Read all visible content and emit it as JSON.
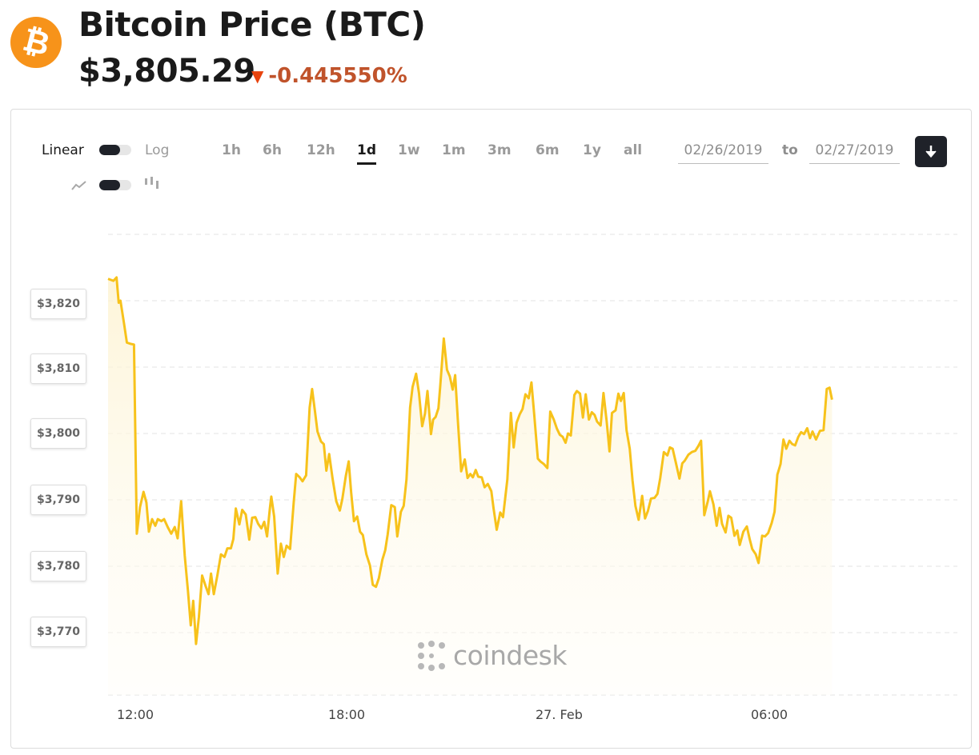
{
  "header": {
    "logo_glyph": "₿",
    "title": "Bitcoin Price (BTC)",
    "price": "$3,805.29",
    "change": "-0.445550%",
    "change_color": "#c0532b",
    "down_arrow_color": "#e8430e",
    "brand_color": "#f7931a"
  },
  "controls": {
    "scale_linear": "Linear",
    "scale_log": "Log",
    "chart_type_line_icon": "line-chart-icon",
    "chart_type_candle_icon": "candlestick-icon",
    "ranges": [
      "1h",
      "6h",
      "12h",
      "1d",
      "1w",
      "1m",
      "3m",
      "6m",
      "1y",
      "all"
    ],
    "active_range": "1d",
    "date_from": "02/26/2019",
    "date_to": "02/27/2019",
    "to_label": "to",
    "download_icon": "download-arrow-icon"
  },
  "watermark": "coindesk",
  "chart_data": {
    "type": "area",
    "line_color": "#f7c21b",
    "y_ticks": [
      "$3,820",
      "$3,810",
      "$3,800",
      "$3,790",
      "$3,780",
      "$3,770"
    ],
    "x_ticks": [
      "12:00",
      "18:00",
      "27. Feb",
      "06:00"
    ],
    "ylim": [
      3760,
      3830
    ],
    "grid": true,
    "series": [
      {
        "values": [
          [
            0,
            3823.3
          ],
          [
            0.15,
            3823.0
          ],
          [
            0.24,
            3823.5
          ],
          [
            0.3,
            3819.7
          ],
          [
            0.35,
            3820.0
          ],
          [
            0.45,
            3816.6
          ],
          [
            0.53,
            3813.7
          ],
          [
            0.63,
            3813.5
          ],
          [
            0.73,
            3813.4
          ],
          [
            0.81,
            3784.9
          ],
          [
            0.9,
            3788.9
          ],
          [
            1.0,
            3791.2
          ],
          [
            1.08,
            3789.6
          ],
          [
            1.15,
            3785.2
          ],
          [
            1.24,
            3787.1
          ],
          [
            1.33,
            3786.1
          ],
          [
            1.4,
            3787.1
          ],
          [
            1.5,
            3786.8
          ],
          [
            1.58,
            3787.1
          ],
          [
            1.68,
            3785.9
          ],
          [
            1.78,
            3784.9
          ],
          [
            1.88,
            3785.9
          ],
          [
            1.96,
            3784.2
          ],
          [
            2.06,
            3789.8
          ],
          [
            2.16,
            3781.6
          ],
          [
            2.25,
            3776.3
          ],
          [
            2.33,
            3771.1
          ],
          [
            2.4,
            3774.8
          ],
          [
            2.48,
            3768.3
          ],
          [
            2.56,
            3772.4
          ],
          [
            2.65,
            3778.6
          ],
          [
            2.75,
            3777.0
          ],
          [
            2.83,
            3775.8
          ],
          [
            2.9,
            3778.9
          ],
          [
            2.98,
            3775.8
          ],
          [
            3.08,
            3778.6
          ],
          [
            3.18,
            3781.8
          ],
          [
            3.28,
            3781.4
          ],
          [
            3.36,
            3782.7
          ],
          [
            3.46,
            3782.7
          ],
          [
            3.53,
            3784.1
          ],
          [
            3.6,
            3788.7
          ],
          [
            3.7,
            3786.3
          ],
          [
            3.78,
            3788.5
          ],
          [
            3.88,
            3787.8
          ],
          [
            3.98,
            3784.0
          ],
          [
            4.06,
            3787.3
          ],
          [
            4.15,
            3787.4
          ],
          [
            4.23,
            3786.4
          ],
          [
            4.32,
            3785.7
          ],
          [
            4.4,
            3786.7
          ],
          [
            4.48,
            3784.5
          ],
          [
            4.56,
            3788.8
          ],
          [
            4.6,
            3790.5
          ],
          [
            4.68,
            3787.5
          ],
          [
            4.78,
            3778.9
          ],
          [
            4.87,
            3783.4
          ],
          [
            4.95,
            3781.4
          ],
          [
            5.03,
            3783.1
          ],
          [
            5.13,
            3782.6
          ],
          [
            5.23,
            3789.6
          ],
          [
            5.3,
            3793.9
          ],
          [
            5.4,
            3793.4
          ],
          [
            5.48,
            3792.8
          ],
          [
            5.58,
            3793.7
          ],
          [
            5.68,
            3803.9
          ],
          [
            5.75,
            3806.7
          ],
          [
            5.83,
            3803.3
          ],
          [
            5.9,
            3800.3
          ],
          [
            6.0,
            3798.8
          ],
          [
            6.08,
            3798.4
          ],
          [
            6.15,
            3794.4
          ],
          [
            6.23,
            3796.9
          ],
          [
            6.33,
            3793.1
          ],
          [
            6.43,
            3789.8
          ],
          [
            6.53,
            3788.4
          ],
          [
            6.6,
            3790.1
          ],
          [
            6.7,
            3793.6
          ],
          [
            6.78,
            3795.8
          ],
          [
            6.85,
            3791.1
          ],
          [
            6.93,
            3786.8
          ],
          [
            7.02,
            3787.5
          ],
          [
            7.1,
            3785.2
          ],
          [
            7.18,
            3784.7
          ],
          [
            7.28,
            3781.8
          ],
          [
            7.38,
            3780.1
          ],
          [
            7.46,
            3777.2
          ],
          [
            7.55,
            3776.9
          ],
          [
            7.63,
            3778.2
          ],
          [
            7.73,
            3781.0
          ],
          [
            7.81,
            3782.4
          ],
          [
            7.88,
            3784.8
          ],
          [
            7.98,
            3789.2
          ],
          [
            8.08,
            3788.9
          ],
          [
            8.15,
            3784.5
          ],
          [
            8.25,
            3788.2
          ],
          [
            8.33,
            3789.1
          ],
          [
            8.41,
            3793.1
          ],
          [
            8.51,
            3803.9
          ],
          [
            8.58,
            3807.0
          ],
          [
            8.68,
            3809.0
          ],
          [
            8.76,
            3806.1
          ],
          [
            8.85,
            3801.1
          ],
          [
            8.93,
            3803.0
          ],
          [
            9.0,
            3806.4
          ],
          [
            9.1,
            3799.9
          ],
          [
            9.16,
            3802.1
          ],
          [
            9.23,
            3802.5
          ],
          [
            9.31,
            3803.8
          ],
          [
            9.36,
            3807.2
          ],
          [
            9.46,
            3814.3
          ],
          [
            9.55,
            3809.6
          ],
          [
            9.63,
            3808.6
          ],
          [
            9.71,
            3806.6
          ],
          [
            9.78,
            3808.8
          ],
          [
            9.86,
            3801.7
          ],
          [
            9.95,
            3794.3
          ],
          [
            10.05,
            3796.1
          ],
          [
            10.13,
            3793.3
          ],
          [
            10.21,
            3793.9
          ],
          [
            10.28,
            3793.4
          ],
          [
            10.36,
            3794.5
          ],
          [
            10.43,
            3793.5
          ],
          [
            10.53,
            3793.4
          ],
          [
            10.61,
            3791.9
          ],
          [
            10.7,
            3792.4
          ],
          [
            10.8,
            3791.3
          ],
          [
            10.86,
            3788.8
          ],
          [
            10.95,
            3785.5
          ],
          [
            11.05,
            3788.1
          ],
          [
            11.13,
            3787.4
          ],
          [
            11.25,
            3793.1
          ],
          [
            11.35,
            3803.1
          ],
          [
            11.43,
            3797.9
          ],
          [
            11.51,
            3801.6
          ],
          [
            11.6,
            3802.9
          ],
          [
            11.68,
            3803.7
          ],
          [
            11.76,
            3805.9
          ],
          [
            11.85,
            3805.3
          ],
          [
            11.93,
            3807.7
          ],
          [
            12.01,
            3802.8
          ],
          [
            12.11,
            3796.2
          ],
          [
            12.18,
            3795.8
          ],
          [
            12.28,
            3795.4
          ],
          [
            12.38,
            3794.8
          ],
          [
            12.46,
            3803.3
          ],
          [
            12.56,
            3802.1
          ],
          [
            12.65,
            3800.7
          ],
          [
            12.73,
            3799.8
          ],
          [
            12.81,
            3799.5
          ],
          [
            12.89,
            3798.6
          ],
          [
            12.96,
            3800.0
          ],
          [
            13.04,
            3799.7
          ],
          [
            13.14,
            3805.8
          ],
          [
            13.21,
            3806.4
          ],
          [
            13.3,
            3806.0
          ],
          [
            13.38,
            3802.4
          ],
          [
            13.46,
            3805.9
          ],
          [
            13.55,
            3802.1
          ],
          [
            13.63,
            3803.2
          ],
          [
            13.71,
            3802.8
          ],
          [
            13.78,
            3801.8
          ],
          [
            13.88,
            3801.2
          ],
          [
            13.96,
            3806.1
          ],
          [
            14.05,
            3801.8
          ],
          [
            14.13,
            3797.3
          ],
          [
            14.2,
            3803.1
          ],
          [
            14.3,
            3803.5
          ],
          [
            14.38,
            3806.0
          ],
          [
            14.45,
            3804.9
          ],
          [
            14.53,
            3806.1
          ],
          [
            14.61,
            3800.5
          ],
          [
            14.7,
            3797.7
          ],
          [
            14.78,
            3792.9
          ],
          [
            14.86,
            3789.1
          ],
          [
            14.95,
            3787.0
          ],
          [
            15.05,
            3790.6
          ],
          [
            15.13,
            3787.2
          ],
          [
            15.21,
            3788.3
          ],
          [
            15.3,
            3790.2
          ],
          [
            15.4,
            3790.3
          ],
          [
            15.48,
            3790.9
          ],
          [
            15.56,
            3793.3
          ],
          [
            15.66,
            3797.2
          ],
          [
            15.76,
            3796.7
          ],
          [
            15.83,
            3797.9
          ],
          [
            15.91,
            3797.7
          ],
          [
            16.0,
            3795.6
          ],
          [
            16.1,
            3793.2
          ],
          [
            16.18,
            3795.5
          ],
          [
            16.25,
            3795.9
          ],
          [
            16.35,
            3796.8
          ],
          [
            16.45,
            3797.2
          ],
          [
            16.55,
            3797.4
          ],
          [
            16.63,
            3798.1
          ],
          [
            16.71,
            3798.9
          ],
          [
            16.8,
            3787.7
          ],
          [
            16.9,
            3789.8
          ],
          [
            16.96,
            3791.3
          ],
          [
            17.06,
            3789.3
          ],
          [
            17.15,
            3786.1
          ],
          [
            17.23,
            3788.8
          ],
          [
            17.3,
            3786.4
          ],
          [
            17.4,
            3785.1
          ],
          [
            17.48,
            3787.6
          ],
          [
            17.56,
            3787.3
          ],
          [
            17.65,
            3784.6
          ],
          [
            17.73,
            3785.4
          ],
          [
            17.8,
            3783.2
          ],
          [
            17.9,
            3785.2
          ],
          [
            18.0,
            3786.0
          ],
          [
            18.08,
            3784.1
          ],
          [
            18.15,
            3782.6
          ],
          [
            18.25,
            3781.8
          ],
          [
            18.33,
            3780.5
          ],
          [
            18.43,
            3784.6
          ],
          [
            18.51,
            3784.5
          ],
          [
            18.6,
            3785.0
          ],
          [
            18.7,
            3786.5
          ],
          [
            18.78,
            3788.2
          ],
          [
            18.86,
            3793.8
          ],
          [
            18.95,
            3795.4
          ],
          [
            19.03,
            3799.1
          ],
          [
            19.11,
            3797.7
          ],
          [
            19.2,
            3798.9
          ],
          [
            19.28,
            3798.4
          ],
          [
            19.36,
            3798.2
          ],
          [
            19.45,
            3799.5
          ],
          [
            19.53,
            3800.2
          ],
          [
            19.61,
            3799.9
          ],
          [
            19.7,
            3800.8
          ],
          [
            19.78,
            3799.3
          ],
          [
            19.85,
            3800.3
          ],
          [
            19.95,
            3799.1
          ],
          [
            20.06,
            3800.4
          ],
          [
            20.16,
            3800.5
          ],
          [
            20.25,
            3806.7
          ],
          [
            20.33,
            3806.9
          ],
          [
            20.4,
            3805.1
          ]
        ]
      }
    ]
  }
}
